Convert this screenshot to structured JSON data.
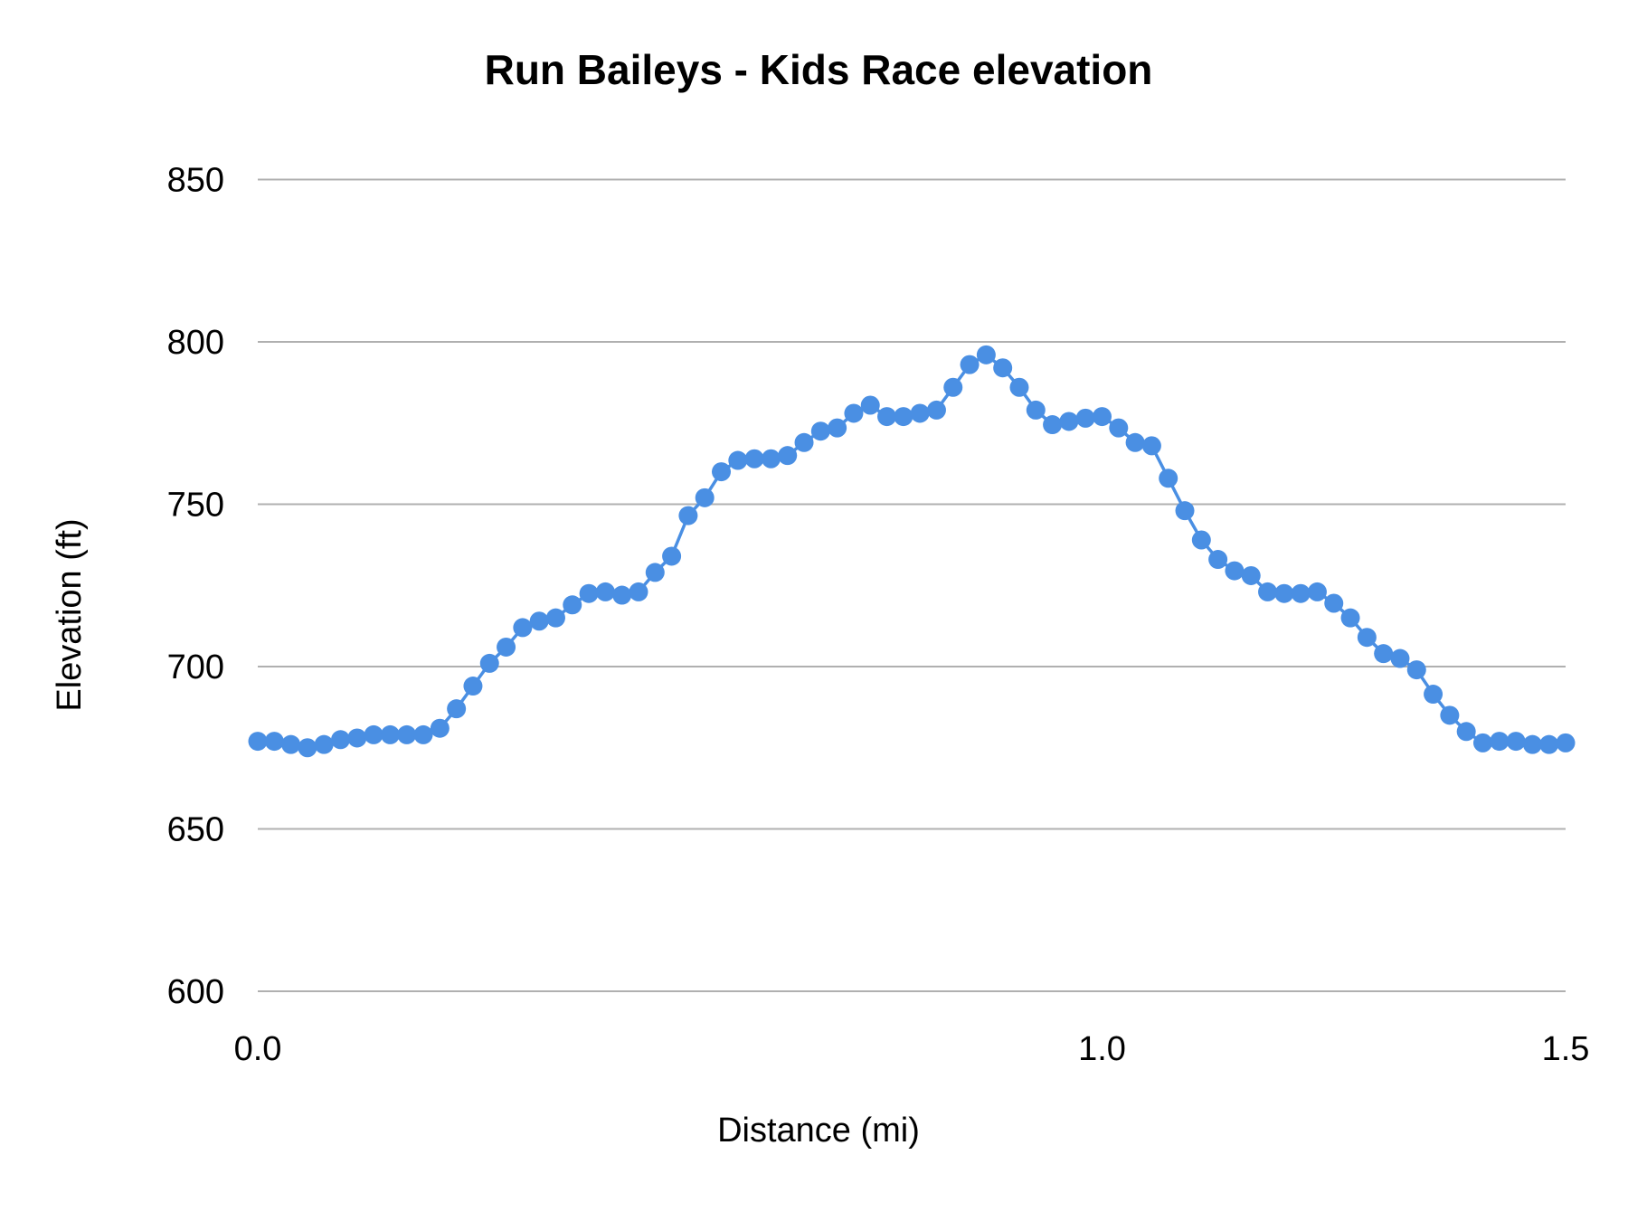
{
  "chart_data": {
    "type": "line",
    "title": "Run Baileys - Kids Race elevation",
    "xlabel": "Distance (mi)",
    "ylabel": "Elevation (ft)",
    "ylim": [
      600,
      850
    ],
    "y_ticks": [
      "600",
      "650",
      "700",
      "750",
      "800",
      "850"
    ],
    "x_tick_labels": [
      {
        "point": 0,
        "label": "0.0"
      },
      {
        "point": 51,
        "label": "1.0"
      },
      {
        "point": 79,
        "label": "1.5"
      }
    ],
    "grid": true,
    "markers": true,
    "series_color": "#4A8FE3",
    "gridline_color": "#B0B0B0",
    "values": [
      677,
      677,
      676,
      675,
      676,
      677.5,
      678,
      679,
      679,
      679,
      679,
      681,
      687,
      694,
      701,
      706,
      712,
      714,
      715,
      719,
      722.5,
      723,
      722,
      723,
      729,
      734,
      746.5,
      752,
      760,
      763.5,
      764,
      764,
      765,
      769,
      772.5,
      773.5,
      778,
      780.5,
      777,
      777,
      778,
      779,
      786,
      793,
      796,
      792,
      786,
      779,
      774.5,
      775.5,
      776.5,
      777,
      773.5,
      769,
      768,
      758,
      748,
      739,
      733,
      729.5,
      728,
      723,
      722.5,
      722.5,
      723,
      719.5,
      715,
      709,
      704,
      702.5,
      699,
      691.5,
      685,
      680,
      676.5,
      677,
      677,
      676,
      676,
      676.5
    ]
  }
}
